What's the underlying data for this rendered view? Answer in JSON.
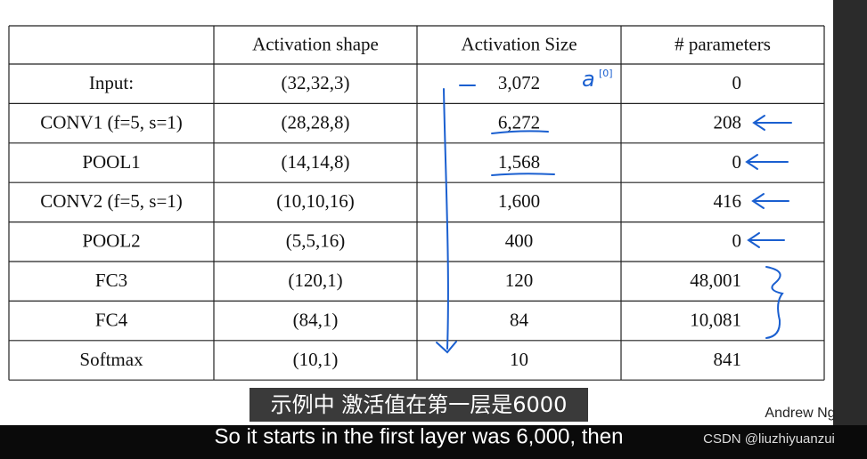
{
  "table": {
    "headers": [
      "Activation shape",
      "Activation Size",
      "# parameters"
    ],
    "rows": [
      [
        "Input:",
        "(32,32,3)",
        "3,072",
        "0"
      ],
      [
        "CONV1 (f=5, s=1)",
        "(28,28,8)",
        "6,272",
        "208"
      ],
      [
        "POOL1",
        "(14,14,8)",
        "1,568",
        "0"
      ],
      [
        "CONV2  (f=5, s=1)",
        "(10,10,16)",
        "1,600",
        "416"
      ],
      [
        "POOL2",
        "(5,5,16)",
        "400",
        "0"
      ],
      [
        "FC3",
        "(120,1)",
        "120",
        "48,001"
      ],
      [
        "FC4",
        "(84,1)",
        "84",
        "10,081"
      ],
      [
        "Softmax",
        "(10,1)",
        "10",
        "841"
      ]
    ]
  },
  "annotation": {
    "symbol": "a",
    "superscript": "[0]"
  },
  "subtitles": {
    "chinese": "示例中 激活值在第一层是6000",
    "english": "So it starts in the first layer was 6,000, then"
  },
  "watermarks": {
    "author": "Andrew Ng",
    "site": "CSDN @liuzhiyuanzui"
  }
}
